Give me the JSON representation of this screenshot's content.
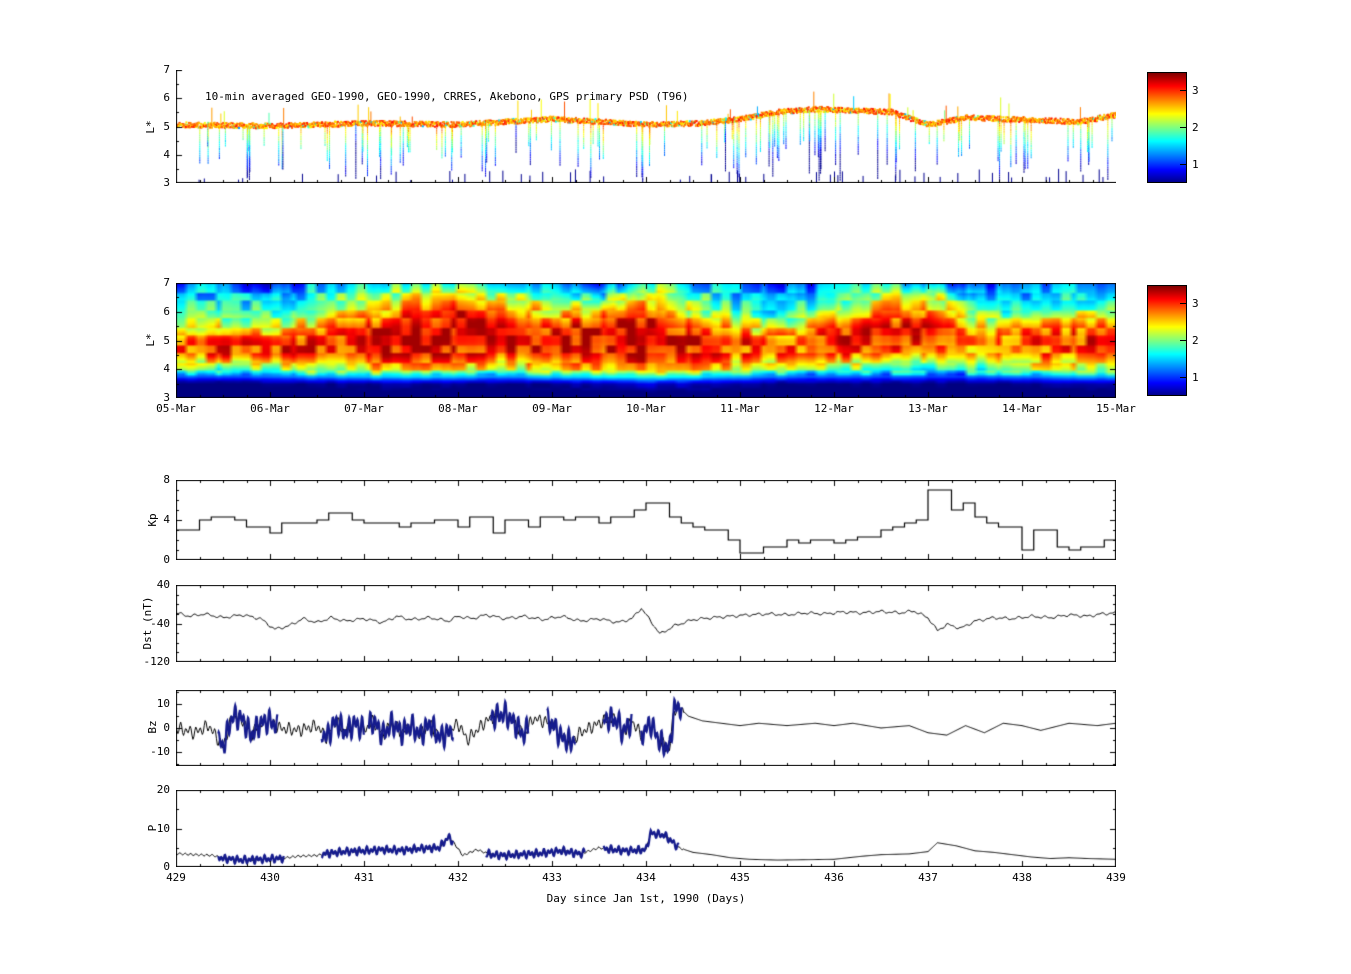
{
  "chart_data": [
    {
      "type": "scatter",
      "name": "psd-scatter-panel",
      "title": "10-min averaged GEO-1990, GEO-1990, CRRES, Akebono, GPS  primary PSD (T96)",
      "ylabel": "L*",
      "ylim": [
        3,
        7
      ],
      "yticks": [
        3,
        4,
        5,
        6,
        7
      ],
      "xlim": [
        429,
        439
      ],
      "seed": 11,
      "baseline": [
        [
          429,
          5.1
        ],
        [
          430,
          5.05
        ],
        [
          431,
          5.15
        ],
        [
          432,
          5.1
        ],
        [
          433,
          5.3
        ],
        [
          433.5,
          5.2
        ],
        [
          434,
          5.1
        ],
        [
          434.6,
          5.15
        ],
        [
          435,
          5.3
        ],
        [
          435.4,
          5.55
        ],
        [
          435.8,
          5.65
        ],
        [
          436.2,
          5.6
        ],
        [
          436.6,
          5.55
        ],
        [
          437,
          5.1
        ],
        [
          437.4,
          5.35
        ],
        [
          437.8,
          5.3
        ],
        [
          438.2,
          5.25
        ],
        [
          438.6,
          5.2
        ],
        [
          439,
          5.45
        ]
      ],
      "colorbar": {
        "ticks": [
          1,
          2,
          3
        ],
        "range": [
          0.5,
          3.5
        ]
      }
    },
    {
      "type": "heatmap",
      "name": "psd-heatmap-panel",
      "ylabel": "L*",
      "ylim": [
        3,
        7
      ],
      "yticks": [
        3,
        4,
        5,
        6,
        7
      ],
      "xlim": [
        429,
        439
      ],
      "x0": 429,
      "dx": 0.5,
      "x_ticklabels": [
        "05-Mar",
        "06-Mar",
        "07-Mar",
        "08-Mar",
        "09-Mar",
        "10-Mar",
        "11-Mar",
        "12-Mar",
        "13-Mar",
        "14-Mar",
        "15-Mar"
      ],
      "lstar_rows": [
        7,
        6.5,
        6,
        5.5,
        5,
        4.5,
        4,
        3.5,
        3
      ],
      "columns": [
        [
          1.0,
          1.5,
          1.8,
          2.0,
          2.8,
          2.8,
          2.0,
          0.4,
          0.3
        ],
        [
          1.4,
          1.6,
          1.8,
          2.4,
          3.0,
          2.9,
          1.8,
          0.4,
          0.3
        ],
        [
          0.8,
          1.4,
          1.8,
          2.2,
          2.9,
          3.0,
          2.0,
          0.5,
          0.3
        ],
        [
          1.5,
          1.7,
          2.0,
          2.6,
          3.0,
          3.0,
          2.2,
          0.5,
          0.3
        ],
        [
          1.6,
          2.0,
          2.4,
          3.0,
          3.1,
          3.0,
          2.4,
          0.6,
          0.3
        ],
        [
          1.8,
          2.4,
          2.8,
          3.1,
          3.2,
          3.1,
          2.6,
          0.6,
          0.3
        ],
        [
          1.8,
          2.6,
          3.0,
          3.2,
          3.2,
          3.0,
          2.4,
          0.6,
          0.3
        ],
        [
          1.6,
          2.2,
          2.8,
          3.2,
          3.2,
          3.0,
          2.2,
          0.5,
          0.3
        ],
        [
          1.5,
          1.9,
          2.4,
          3.0,
          3.2,
          3.1,
          2.4,
          0.6,
          0.3
        ],
        [
          0.8,
          1.6,
          2.6,
          3.1,
          3.2,
          3.0,
          2.6,
          0.7,
          0.3
        ],
        [
          2.0,
          2.6,
          2.9,
          3.2,
          3.3,
          3.1,
          2.8,
          0.8,
          0.3
        ],
        [
          1.4,
          1.8,
          2.2,
          2.8,
          3.1,
          3.0,
          2.6,
          0.7,
          0.3
        ],
        [
          1.3,
          1.5,
          1.8,
          2.4,
          3.0,
          2.9,
          2.2,
          0.6,
          0.3
        ],
        [
          0.9,
          1.4,
          1.6,
          2.2,
          2.9,
          2.8,
          2.0,
          0.5,
          0.3
        ],
        [
          1.4,
          1.6,
          2.2,
          2.9,
          3.0,
          2.8,
          1.9,
          0.5,
          0.3
        ],
        [
          1.6,
          2.2,
          2.6,
          3.1,
          3.1,
          2.8,
          1.8,
          0.5,
          0.3
        ],
        [
          1.5,
          2.4,
          2.8,
          3.2,
          3.0,
          2.6,
          1.7,
          0.5,
          0.3
        ],
        [
          0.8,
          1.4,
          1.8,
          2.4,
          2.8,
          2.6,
          1.8,
          0.5,
          0.3
        ],
        [
          1.2,
          1.5,
          1.9,
          2.6,
          2.9,
          2.8,
          2.0,
          0.5,
          0.3
        ],
        [
          1.3,
          1.6,
          2.0,
          2.7,
          3.0,
          2.8,
          2.2,
          0.6,
          0.3
        ],
        [
          1.4,
          1.7,
          2.2,
          2.8,
          3.0,
          2.9,
          2.2,
          0.6,
          0.3
        ]
      ],
      "colorbar": {
        "ticks": [
          1,
          2,
          3
        ],
        "range": [
          0.5,
          3.5
        ]
      }
    },
    {
      "type": "line",
      "name": "kp-panel",
      "ylabel": "Kp",
      "ylim": [
        0,
        8
      ],
      "yticks": [
        0,
        4,
        8
      ],
      "xlim": [
        429,
        439
      ],
      "step": true,
      "x0": 429,
      "dx": 0.125,
      "values": [
        3,
        3,
        4,
        4.3,
        4.3,
        4,
        3.3,
        3.3,
        2.7,
        3.7,
        3.7,
        3.7,
        4,
        4.7,
        4.7,
        4,
        3.7,
        3.7,
        3.7,
        3.3,
        3.7,
        3.7,
        4,
        4,
        3.3,
        4.3,
        4.3,
        2.7,
        4,
        4,
        3.3,
        4.3,
        4.3,
        4,
        4.3,
        4.3,
        3.7,
        4.3,
        4.3,
        5,
        5.7,
        5.7,
        4.3,
        3.7,
        3.3,
        3,
        3,
        2,
        0.7,
        0.7,
        1.3,
        1.3,
        2,
        1.7,
        2,
        2,
        1.7,
        2,
        2.3,
        2.3,
        3,
        3.3,
        3.7,
        4,
        7,
        7,
        5,
        5.7,
        4.3,
        3.7,
        3.3,
        3.3,
        1,
        3,
        3,
        1.3,
        1,
        1.3,
        1.3,
        2
      ]
    },
    {
      "type": "line",
      "name": "dst-panel",
      "ylabel": "Dst (nT)",
      "ylim": [
        -120,
        40
      ],
      "yticks": [
        -120,
        -40,
        40
      ],
      "xlim": [
        429,
        439
      ],
      "points": [
        [
          429,
          -18
        ],
        [
          429.15,
          -25
        ],
        [
          429.3,
          -20
        ],
        [
          429.5,
          -28
        ],
        [
          429.7,
          -22
        ],
        [
          429.9,
          -30
        ],
        [
          430.05,
          -52
        ],
        [
          430.2,
          -45
        ],
        [
          430.35,
          -30
        ],
        [
          430.5,
          -38
        ],
        [
          430.65,
          -28
        ],
        [
          430.8,
          -35
        ],
        [
          431,
          -30
        ],
        [
          431.2,
          -38
        ],
        [
          431.35,
          -25
        ],
        [
          431.5,
          -32
        ],
        [
          431.7,
          -28
        ],
        [
          431.9,
          -35
        ],
        [
          432,
          -25
        ],
        [
          432.15,
          -30
        ],
        [
          432.3,
          -22
        ],
        [
          432.5,
          -30
        ],
        [
          432.7,
          -25
        ],
        [
          432.9,
          -32
        ],
        [
          433.1,
          -25
        ],
        [
          433.3,
          -35
        ],
        [
          433.5,
          -30
        ],
        [
          433.7,
          -38
        ],
        [
          433.85,
          -30
        ],
        [
          433.95,
          -8
        ],
        [
          434.05,
          -35
        ],
        [
          434.15,
          -62
        ],
        [
          434.3,
          -45
        ],
        [
          434.5,
          -32
        ],
        [
          434.7,
          -28
        ],
        [
          434.9,
          -25
        ],
        [
          435.1,
          -22
        ],
        [
          435.3,
          -20
        ],
        [
          435.5,
          -22
        ],
        [
          435.7,
          -18
        ],
        [
          435.9,
          -20
        ],
        [
          436.1,
          -16
        ],
        [
          436.3,
          -18
        ],
        [
          436.5,
          -15
        ],
        [
          436.7,
          -18
        ],
        [
          436.85,
          -14
        ],
        [
          437,
          -28
        ],
        [
          437.1,
          -55
        ],
        [
          437.2,
          -42
        ],
        [
          437.35,
          -50
        ],
        [
          437.5,
          -35
        ],
        [
          437.7,
          -28
        ],
        [
          437.9,
          -30
        ],
        [
          438.1,
          -25
        ],
        [
          438.3,
          -28
        ],
        [
          438.5,
          -22
        ],
        [
          438.7,
          -25
        ],
        [
          438.85,
          -20
        ],
        [
          439,
          -18
        ]
      ]
    },
    {
      "type": "line",
      "name": "bz-panel",
      "ylabel": "Bz",
      "ylim": [
        -16,
        16
      ],
      "yticks": [
        -10,
        0,
        10
      ],
      "xlim": [
        429,
        439
      ],
      "thick_color": "#151b8d",
      "thick_intervals": [
        [
          429.45,
          430.08
        ],
        [
          430.55,
          431.0
        ],
        [
          431.05,
          431.95
        ],
        [
          432.35,
          432.75
        ],
        [
          432.95,
          433.25
        ],
        [
          433.55,
          433.85
        ],
        [
          433.95,
          434.38
        ]
      ],
      "points": [
        [
          429,
          0
        ],
        [
          429.2,
          -2
        ],
        [
          429.35,
          1
        ],
        [
          429.5,
          -8
        ],
        [
          429.6,
          5
        ],
        [
          429.7,
          4
        ],
        [
          429.8,
          -3
        ],
        [
          429.9,
          2
        ],
        [
          430,
          3
        ],
        [
          430.1,
          0
        ],
        [
          430.3,
          -1
        ],
        [
          430.5,
          1
        ],
        [
          430.6,
          -4
        ],
        [
          430.7,
          3
        ],
        [
          430.8,
          -2
        ],
        [
          430.9,
          2
        ],
        [
          431,
          -1
        ],
        [
          431.1,
          3
        ],
        [
          431.2,
          -3
        ],
        [
          431.3,
          2
        ],
        [
          431.4,
          -2
        ],
        [
          431.5,
          1
        ],
        [
          431.6,
          -3
        ],
        [
          431.7,
          2
        ],
        [
          431.8,
          -4
        ],
        [
          431.9,
          -2
        ],
        [
          432,
          2
        ],
        [
          432.1,
          -5
        ],
        [
          432.2,
          -1
        ],
        [
          432.3,
          3
        ],
        [
          432.4,
          5
        ],
        [
          432.5,
          6
        ],
        [
          432.6,
          2
        ],
        [
          432.7,
          -3
        ],
        [
          432.8,
          4
        ],
        [
          432.9,
          3
        ],
        [
          433,
          2
        ],
        [
          433.1,
          -4
        ],
        [
          433.2,
          -6
        ],
        [
          433.3,
          -2
        ],
        [
          433.4,
          0
        ],
        [
          433.5,
          2
        ],
        [
          433.6,
          4
        ],
        [
          433.7,
          3
        ],
        [
          433.75,
          -2
        ],
        [
          433.85,
          3
        ],
        [
          433.95,
          -3
        ],
        [
          434.05,
          2
        ],
        [
          434.15,
          -6
        ],
        [
          434.25,
          -9
        ],
        [
          434.3,
          8
        ],
        [
          434.35,
          9
        ],
        [
          434.45,
          5
        ],
        [
          434.6,
          3
        ],
        [
          434.8,
          2
        ],
        [
          435,
          1
        ],
        [
          435.2,
          2
        ],
        [
          435.5,
          1
        ],
        [
          435.8,
          2
        ],
        [
          436,
          1
        ],
        [
          436.2,
          2
        ],
        [
          436.5,
          0
        ],
        [
          436.8,
          1
        ],
        [
          437,
          -2
        ],
        [
          437.2,
          -3
        ],
        [
          437.4,
          1
        ],
        [
          437.6,
          -2
        ],
        [
          437.8,
          2
        ],
        [
          438,
          1
        ],
        [
          438.2,
          -1
        ],
        [
          438.5,
          2
        ],
        [
          438.8,
          1
        ],
        [
          439,
          2
        ]
      ]
    },
    {
      "type": "line",
      "name": "p-panel",
      "ylabel": "P",
      "ylim": [
        0,
        20
      ],
      "yticks": [
        0,
        10,
        20
      ],
      "xlim": [
        429,
        439
      ],
      "xticks": [
        429,
        430,
        431,
        432,
        433,
        434,
        435,
        436,
        437,
        438,
        439
      ],
      "xlabel": "Day since Jan 1st, 1990 (Days)",
      "thick_color": "#151b8d",
      "thick_intervals": [
        [
          429.45,
          430.15
        ],
        [
          430.55,
          431.95
        ],
        [
          432.3,
          433.35
        ],
        [
          433.55,
          434.35
        ]
      ],
      "points": [
        [
          429,
          3.5
        ],
        [
          429.2,
          3.2
        ],
        [
          429.4,
          3.0
        ],
        [
          429.5,
          2.2
        ],
        [
          429.7,
          1.8
        ],
        [
          429.9,
          2.0
        ],
        [
          430.1,
          2.2
        ],
        [
          430.3,
          2.8
        ],
        [
          430.5,
          3.0
        ],
        [
          430.6,
          3.5
        ],
        [
          430.8,
          4.0
        ],
        [
          431,
          4.2
        ],
        [
          431.2,
          4.5
        ],
        [
          431.4,
          4.3
        ],
        [
          431.6,
          4.8
        ],
        [
          431.8,
          5.0
        ],
        [
          431.9,
          7.8
        ],
        [
          431.95,
          6.5
        ],
        [
          432.05,
          3.0
        ],
        [
          432.2,
          4.5
        ],
        [
          432.35,
          3.2
        ],
        [
          432.5,
          3.0
        ],
        [
          432.7,
          3.3
        ],
        [
          432.9,
          3.6
        ],
        [
          433.1,
          4.2
        ],
        [
          433.3,
          3.4
        ],
        [
          433.5,
          5.0
        ],
        [
          433.6,
          4.6
        ],
        [
          433.8,
          4.2
        ],
        [
          434,
          4.5
        ],
        [
          434.05,
          8.8
        ],
        [
          434.2,
          8.2
        ],
        [
          434.35,
          5.0
        ],
        [
          434.5,
          3.8
        ],
        [
          434.7,
          3.2
        ],
        [
          434.9,
          2.4
        ],
        [
          435.1,
          2.0
        ],
        [
          435.4,
          1.8
        ],
        [
          435.7,
          1.9
        ],
        [
          436,
          2.0
        ],
        [
          436.3,
          2.8
        ],
        [
          436.5,
          3.2
        ],
        [
          436.8,
          3.4
        ],
        [
          437,
          4.0
        ],
        [
          437.1,
          6.3
        ],
        [
          437.3,
          5.5
        ],
        [
          437.5,
          4.2
        ],
        [
          437.7,
          3.8
        ],
        [
          437.9,
          3.2
        ],
        [
          438.1,
          2.6
        ],
        [
          438.3,
          2.2
        ],
        [
          438.5,
          2.4
        ],
        [
          438.7,
          2.2
        ],
        [
          439,
          2.0
        ]
      ]
    }
  ]
}
